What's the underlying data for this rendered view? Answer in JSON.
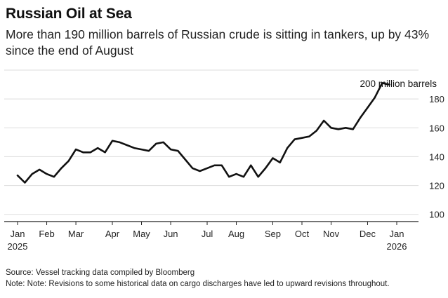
{
  "header": {
    "title": "Russian Oil at Sea",
    "subtitle": "More than 190 million barrels of Russian crude is sitting in tankers, up by 43% since the end of August"
  },
  "footer": {
    "source": "Source: Vessel tracking data compiled by Bloomberg",
    "note": "Note: Note: Revisions to some historical data on cargo discharges have led to upward revisions throughout."
  },
  "colors": {
    "line": "#111111",
    "grid": "#dddddd",
    "axis": "#222222"
  },
  "chart_data": {
    "type": "line",
    "title": "Russian Oil at Sea",
    "unit_label": "200 million barrels",
    "ylim": [
      95,
      200
    ],
    "yticks": [
      100,
      120,
      140,
      160,
      180
    ],
    "xlim": [
      0,
      52
    ],
    "x_ticks": [
      {
        "label": "Jan",
        "year": "2025",
        "x": 0
      },
      {
        "label": "Feb",
        "year": "",
        "x": 4
      },
      {
        "label": "Mar",
        "year": "",
        "x": 8
      },
      {
        "label": "Apr",
        "year": "",
        "x": 13
      },
      {
        "label": "May",
        "year": "",
        "x": 17
      },
      {
        "label": "Jun",
        "year": "",
        "x": 21
      },
      {
        "label": "Jul",
        "year": "",
        "x": 26
      },
      {
        "label": "Aug",
        "year": "",
        "x": 30
      },
      {
        "label": "Sep",
        "year": "",
        "x": 35
      },
      {
        "label": "Oct",
        "year": "",
        "x": 39
      },
      {
        "label": "Nov",
        "year": "",
        "x": 43
      },
      {
        "label": "Dec",
        "year": "",
        "x": 48
      },
      {
        "label": "Jan",
        "year": "2026",
        "x": 52
      }
    ],
    "grid": true,
    "legend": "none",
    "series": [
      {
        "x": [
          0,
          1,
          2,
          3,
          4,
          5,
          6,
          7,
          8,
          9,
          10,
          11,
          12,
          13,
          14,
          15,
          16,
          17,
          18,
          19,
          20,
          21,
          22,
          23,
          24,
          25,
          26,
          27,
          28,
          29,
          30,
          31,
          32,
          33,
          34,
          35,
          36,
          37,
          38,
          39,
          40,
          41,
          42,
          43,
          44,
          45,
          46,
          47,
          48,
          49,
          50,
          51
        ],
        "values": [
          127,
          122,
          128,
          131,
          128,
          126,
          132,
          137,
          145,
          143,
          143,
          146,
          143,
          151,
          150,
          148,
          146,
          145,
          144,
          149,
          150,
          145,
          144,
          138,
          132,
          130,
          132,
          134,
          134,
          126,
          128,
          126,
          134,
          126,
          132,
          139,
          136,
          146,
          152,
          153,
          154,
          158,
          165,
          160,
          159,
          160,
          159,
          167,
          174,
          181,
          191,
          190
        ]
      }
    ]
  }
}
